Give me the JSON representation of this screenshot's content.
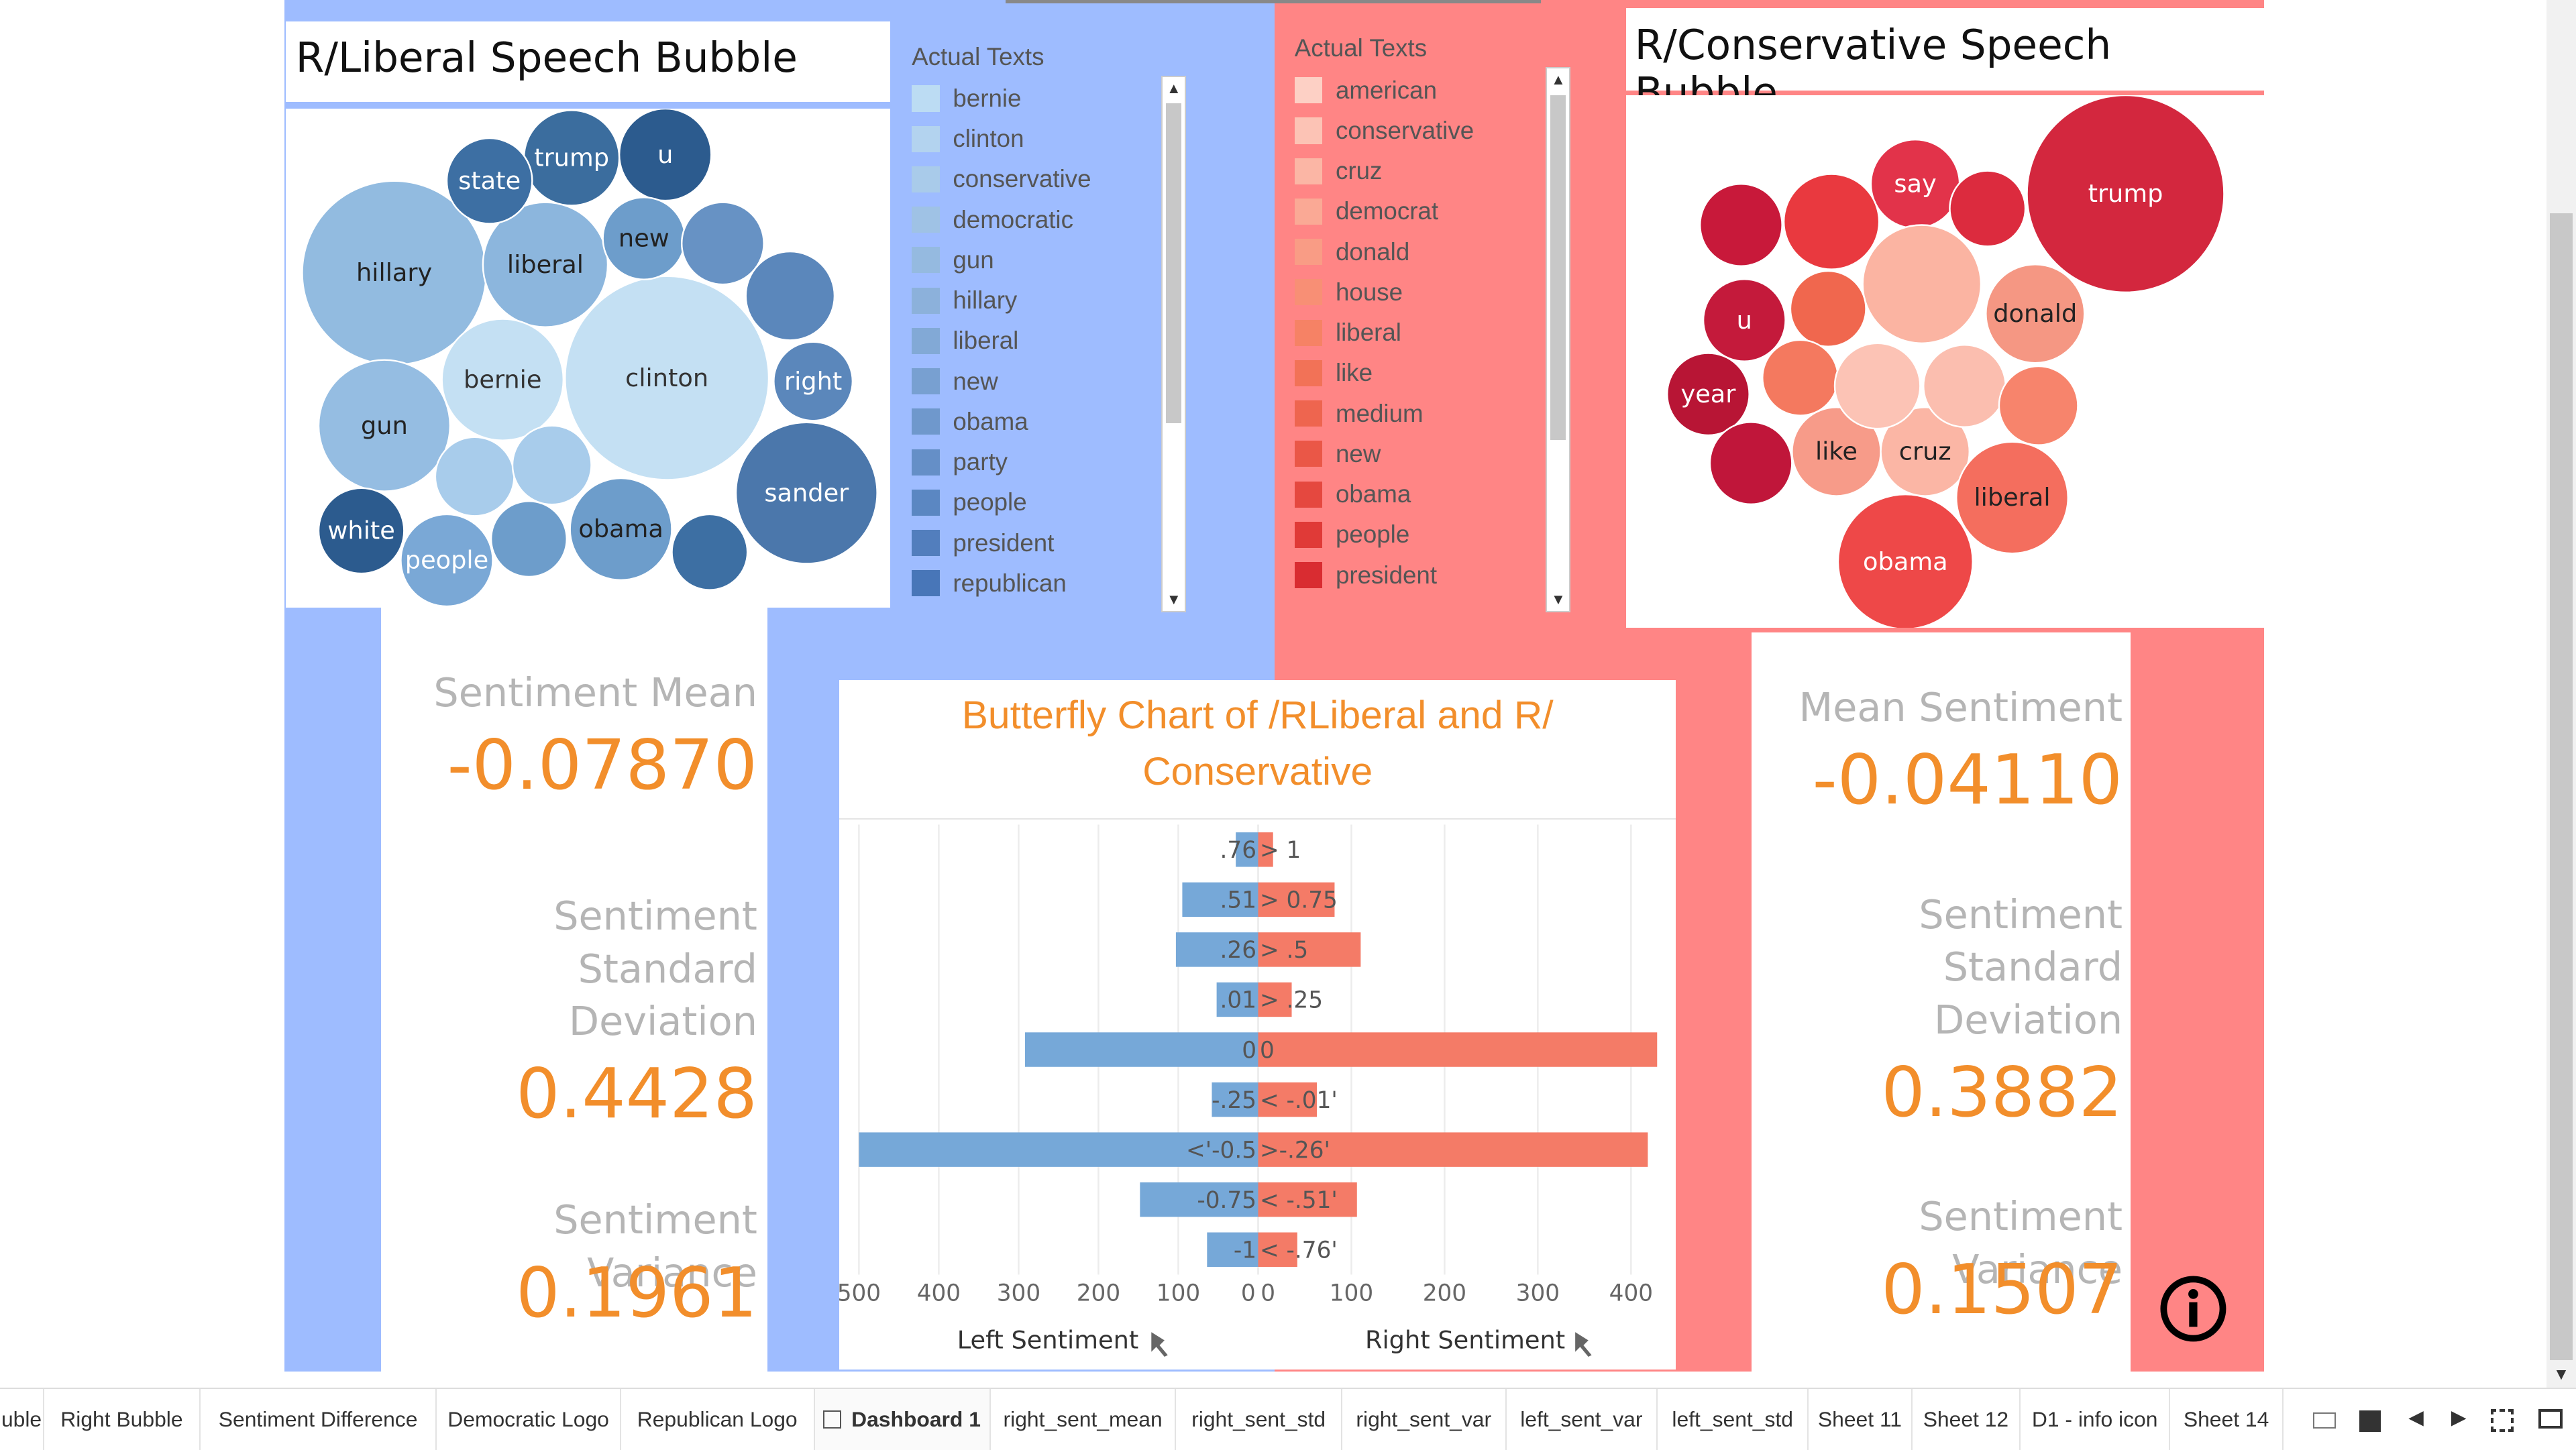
{
  "left_bubble": {
    "title": "R/Liberal Speech Bubble",
    "bubbles": [
      {
        "label": "hillary"
      },
      {
        "label": "clinton"
      },
      {
        "label": "liberal"
      },
      {
        "label": "bernie"
      },
      {
        "label": "gun"
      },
      {
        "label": "trump"
      },
      {
        "label": "u"
      },
      {
        "label": "state"
      },
      {
        "label": "new"
      },
      {
        "label": "right"
      },
      {
        "label": "sander"
      },
      {
        "label": "obama"
      },
      {
        "label": "white"
      },
      {
        "label": "people"
      },
      {
        "label": ""
      },
      {
        "label": ""
      },
      {
        "label": ""
      },
      {
        "label": ""
      },
      {
        "label": ""
      },
      {
        "label": ""
      }
    ]
  },
  "left_legend": {
    "title": "Actual Texts",
    "items": [
      "bernie",
      "clinton",
      "conservative",
      "democratic",
      "gun",
      "hillary",
      "liberal",
      "new",
      "obama",
      "party",
      "people",
      "president",
      "republican"
    ],
    "colors": [
      "#bcdcf3",
      "#b3d3ef",
      "#a9cbea",
      "#9fc2e5",
      "#95bae0",
      "#8cb1db",
      "#82a9d6",
      "#78a0d1",
      "#6f98cc",
      "#658fc7",
      "#5b87c2",
      "#527ebd",
      "#4876b8"
    ]
  },
  "right_legend": {
    "title": "Actual Texts",
    "items": [
      "american",
      "conservative",
      "cruz",
      "democrat",
      "donald",
      "house",
      "liberal",
      "like",
      "medium",
      "new",
      "obama",
      "people",
      "president"
    ],
    "colors": [
      "#fdd0c5",
      "#fcc3b5",
      "#fbb6a5",
      "#faa995",
      "#f99c85",
      "#f88f75",
      "#f68265",
      "#f27257",
      "#ee654f",
      "#ea5747",
      "#e5483f",
      "#e03a37",
      "#d92c31"
    ]
  },
  "right_bubble": {
    "title": "R/Conservative Speech Bubble",
    "bubbles": [
      {
        "label": "trump"
      },
      {
        "label": "say"
      },
      {
        "label": "donald"
      },
      {
        "label": "u"
      },
      {
        "label": "year"
      },
      {
        "label": "like"
      },
      {
        "label": "cruz"
      },
      {
        "label": "liberal"
      },
      {
        "label": "obama"
      },
      {
        "label": ""
      },
      {
        "label": ""
      },
      {
        "label": ""
      },
      {
        "label": ""
      },
      {
        "label": ""
      },
      {
        "label": ""
      },
      {
        "label": ""
      },
      {
        "label": ""
      },
      {
        "label": ""
      },
      {
        "label": ""
      }
    ]
  },
  "left_stats": {
    "mean_label": "Sentiment Mean",
    "mean_value": "-0.07870",
    "std_label_1": "Sentiment",
    "std_label_2": "Standard",
    "std_label_3": "Deviation",
    "std_value": "0.4428",
    "var_label": "Sentiment Variance",
    "var_value": "0.1961"
  },
  "right_stats": {
    "mean_label": "Mean Sentiment",
    "mean_value": "-0.04110",
    "std_label_1": "Sentiment",
    "std_label_2": "Standard",
    "std_label_3": "Deviation",
    "std_value": "0.3882",
    "var_label": "Sentiment Variance",
    "var_value": "0.1507"
  },
  "chart_data": {
    "type": "bar",
    "title": "Butterfly Chart of /RLiberal and R/ Conservative",
    "title_line1": "Butterfly Chart of /RLiberal and R/",
    "title_line2": "Conservative",
    "left_axis_label": "Left Sentiment",
    "right_axis_label": "Right Sentiment",
    "left_ticks": [
      "500",
      "400",
      "300",
      "200",
      "100",
      "0"
    ],
    "right_ticks": [
      "0",
      "100",
      "200",
      "300",
      "400"
    ],
    "left_range": [
      0,
      500
    ],
    "right_range": [
      0,
      430
    ],
    "left_color": "#76a8d8",
    "right_color": "#f47b67",
    "series": [
      {
        "name": "Left Sentiment",
        "labels": [
          ".76",
          ".51",
          ".26",
          ".01",
          "0",
          "-.25",
          "<'-0.5",
          "-0.75",
          "-1"
        ],
        "values": [
          28,
          95,
          103,
          52,
          292,
          58,
          500,
          148,
          64
        ]
      },
      {
        "name": "Right Sentiment",
        "labels": [
          "> 1",
          "> 0.75",
          "> .5",
          "> .25",
          "0",
          "< -.01'",
          ">-.26'",
          "< -.51'",
          "< -.76'"
        ],
        "values": [
          16,
          82,
          110,
          36,
          428,
          63,
          418,
          106,
          42
        ]
      }
    ],
    "grid": true
  },
  "info_icon": "info-icon",
  "tabs": {
    "items": [
      "uble",
      "Right Bubble",
      "Sentiment Difference",
      "Democratic Logo",
      "Republican Logo",
      "Dashboard 1",
      "right_sent_mean",
      "right_sent_std",
      "right_sent_var",
      "left_sent_var",
      "left_sent_std",
      "Sheet 11",
      "Sheet 12",
      "D1 - info icon",
      "Sheet 14"
    ],
    "active": "Dashboard 1"
  }
}
